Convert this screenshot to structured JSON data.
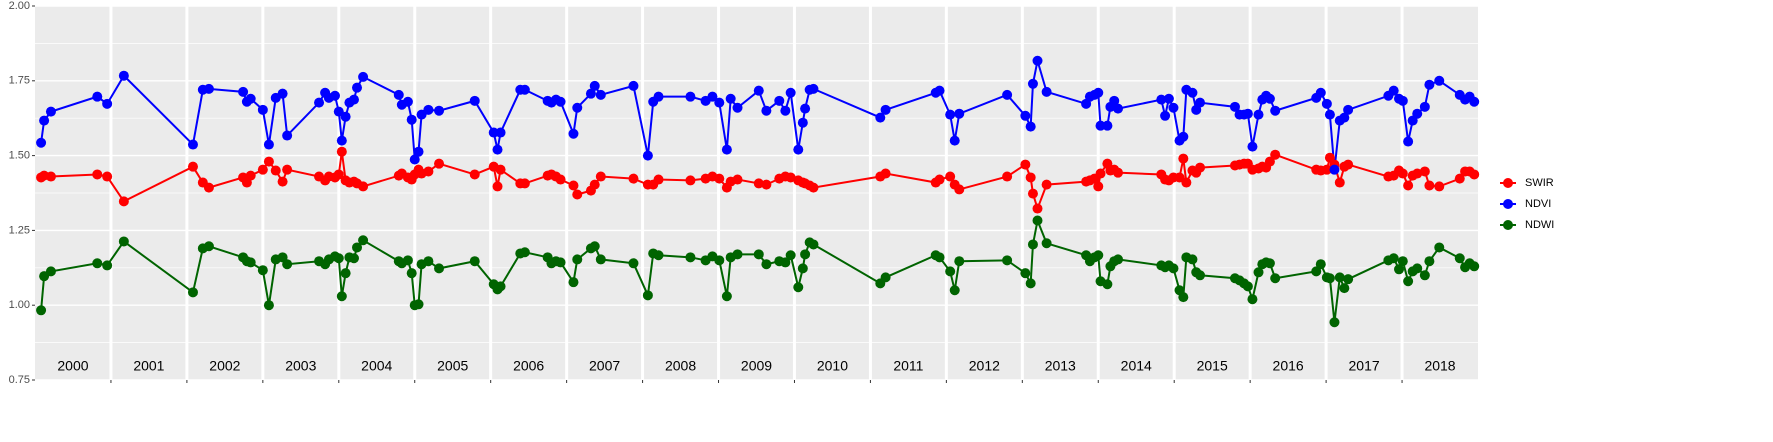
{
  "chart_data": {
    "type": "line",
    "x": [
      2000.08,
      2000.12,
      2000.21,
      2000.82,
      2000.95,
      2001.17,
      2002.08,
      2002.21,
      2002.29,
      2002.74,
      2002.79,
      2002.84,
      2003.0,
      2003.08,
      2003.17,
      2003.26,
      2003.32,
      2003.74,
      2003.82,
      2003.87,
      2003.95,
      2004.0,
      2004.04,
      2004.09,
      2004.14,
      2004.2,
      2004.24,
      2004.32,
      2004.79,
      2004.83,
      2004.91,
      2004.96,
      2005.0,
      2005.05,
      2005.09,
      2005.18,
      2005.32,
      2005.79,
      2006.04,
      2006.09,
      2006.13,
      2006.39,
      2006.45,
      2006.75,
      2006.8,
      2006.86,
      2006.92,
      2007.09,
      2007.14,
      2007.32,
      2007.37,
      2007.45,
      2007.88,
      2008.07,
      2008.14,
      2008.21,
      2008.63,
      2008.83,
      2008.92,
      2009.01,
      2009.11,
      2009.16,
      2009.25,
      2009.53,
      2009.63,
      2009.8,
      2009.88,
      2009.95,
      2010.05,
      2010.11,
      2010.14,
      2010.2,
      2010.25,
      2011.13,
      2011.2,
      2011.86,
      2011.91,
      2012.05,
      2012.11,
      2012.17,
      2012.8,
      2013.04,
      2013.11,
      2013.14,
      2013.2,
      2013.32,
      2013.84,
      2013.89,
      2013.95,
      2014.0,
      2014.03,
      2014.12,
      2014.16,
      2014.21,
      2014.26,
      2014.83,
      2014.88,
      2014.93,
      2014.99,
      2015.07,
      2015.12,
      2015.16,
      2015.24,
      2015.29,
      2015.34,
      2015.8,
      2015.86,
      2015.92,
      2015.97,
      2016.03,
      2016.11,
      2016.16,
      2016.21,
      2016.26,
      2016.33,
      2016.87,
      2016.93,
      2017.01,
      2017.05,
      2017.11,
      2017.18,
      2017.24,
      2017.29,
      2017.82,
      2017.89,
      2017.96,
      2018.01,
      2018.08,
      2018.14,
      2018.2,
      2018.3,
      2018.36,
      2018.49,
      2018.76,
      2018.83,
      2018.89,
      2018.95
    ],
    "series": [
      {
        "name": "SWIR",
        "color": "#ff0000",
        "values": [
          1.427,
          1.433,
          1.43,
          1.437,
          1.43,
          1.347,
          1.463,
          1.41,
          1.393,
          1.427,
          1.41,
          1.433,
          1.453,
          1.48,
          1.45,
          1.413,
          1.453,
          1.43,
          1.417,
          1.43,
          1.427,
          1.437,
          1.513,
          1.417,
          1.41,
          1.413,
          1.407,
          1.397,
          1.433,
          1.44,
          1.427,
          1.42,
          1.437,
          1.453,
          1.44,
          1.447,
          1.473,
          1.437,
          1.463,
          1.397,
          1.453,
          1.407,
          1.407,
          1.433,
          1.437,
          1.43,
          1.42,
          1.4,
          1.37,
          1.383,
          1.403,
          1.43,
          1.423,
          1.403,
          1.403,
          1.42,
          1.417,
          1.423,
          1.43,
          1.423,
          1.393,
          1.413,
          1.42,
          1.407,
          1.403,
          1.423,
          1.43,
          1.427,
          1.417,
          1.41,
          1.407,
          1.4,
          1.393,
          1.43,
          1.44,
          1.41,
          1.42,
          1.43,
          1.403,
          1.387,
          1.43,
          1.47,
          1.427,
          1.373,
          1.323,
          1.403,
          1.413,
          1.417,
          1.423,
          1.397,
          1.44,
          1.473,
          1.45,
          1.453,
          1.443,
          1.437,
          1.42,
          1.417,
          1.427,
          1.427,
          1.49,
          1.41,
          1.45,
          1.443,
          1.46,
          1.467,
          1.47,
          1.473,
          1.473,
          1.453,
          1.457,
          1.463,
          1.46,
          1.48,
          1.503,
          1.453,
          1.45,
          1.453,
          1.493,
          1.47,
          1.41,
          1.463,
          1.47,
          1.43,
          1.433,
          1.45,
          1.44,
          1.4,
          1.433,
          1.44,
          1.447,
          1.4,
          1.397,
          1.423,
          1.447,
          1.447,
          1.437
        ]
      },
      {
        "name": "NDVI",
        "color": "#0000ff",
        "values": [
          1.543,
          1.617,
          1.647,
          1.697,
          1.673,
          1.767,
          1.537,
          1.72,
          1.723,
          1.713,
          1.68,
          1.69,
          1.653,
          1.537,
          1.693,
          1.707,
          1.567,
          1.677,
          1.71,
          1.693,
          1.7,
          1.647,
          1.55,
          1.63,
          1.677,
          1.687,
          1.727,
          1.763,
          1.703,
          1.67,
          1.68,
          1.62,
          1.487,
          1.513,
          1.637,
          1.653,
          1.65,
          1.683,
          1.577,
          1.52,
          1.577,
          1.72,
          1.72,
          1.683,
          1.677,
          1.687,
          1.68,
          1.573,
          1.66,
          1.707,
          1.733,
          1.703,
          1.733,
          1.5,
          1.68,
          1.697,
          1.697,
          1.683,
          1.697,
          1.677,
          1.52,
          1.69,
          1.66,
          1.717,
          1.65,
          1.683,
          1.65,
          1.71,
          1.52,
          1.61,
          1.657,
          1.72,
          1.723,
          1.627,
          1.653,
          1.71,
          1.717,
          1.637,
          1.55,
          1.64,
          1.703,
          1.633,
          1.597,
          1.74,
          1.817,
          1.713,
          1.673,
          1.697,
          1.703,
          1.71,
          1.6,
          1.6,
          1.663,
          1.683,
          1.657,
          1.687,
          1.633,
          1.69,
          1.66,
          1.55,
          1.563,
          1.72,
          1.71,
          1.653,
          1.677,
          1.663,
          1.637,
          1.637,
          1.64,
          1.53,
          1.637,
          1.687,
          1.7,
          1.69,
          1.65,
          1.693,
          1.71,
          1.673,
          1.637,
          1.453,
          1.617,
          1.627,
          1.653,
          1.7,
          1.717,
          1.69,
          1.683,
          1.547,
          1.617,
          1.64,
          1.663,
          1.737,
          1.75,
          1.703,
          1.687,
          1.697,
          1.68
        ]
      },
      {
        "name": "NDWI",
        "color": "#006400",
        "values": [
          0.983,
          1.097,
          1.113,
          1.14,
          1.133,
          1.213,
          1.043,
          1.19,
          1.197,
          1.16,
          1.147,
          1.143,
          1.117,
          1.0,
          1.153,
          1.16,
          1.137,
          1.147,
          1.137,
          1.153,
          1.163,
          1.157,
          1.03,
          1.107,
          1.16,
          1.157,
          1.193,
          1.217,
          1.147,
          1.14,
          1.15,
          1.107,
          1.0,
          1.003,
          1.137,
          1.147,
          1.123,
          1.147,
          1.07,
          1.053,
          1.063,
          1.173,
          1.177,
          1.16,
          1.14,
          1.147,
          1.143,
          1.077,
          1.153,
          1.19,
          1.197,
          1.153,
          1.14,
          1.033,
          1.173,
          1.167,
          1.16,
          1.15,
          1.163,
          1.15,
          1.03,
          1.16,
          1.17,
          1.17,
          1.137,
          1.147,
          1.143,
          1.167,
          1.06,
          1.123,
          1.17,
          1.21,
          1.203,
          1.073,
          1.093,
          1.167,
          1.16,
          1.113,
          1.05,
          1.147,
          1.15,
          1.107,
          1.073,
          1.203,
          1.283,
          1.207,
          1.167,
          1.147,
          1.16,
          1.167,
          1.08,
          1.07,
          1.13,
          1.147,
          1.153,
          1.133,
          1.127,
          1.133,
          1.123,
          1.05,
          1.027,
          1.16,
          1.153,
          1.11,
          1.1,
          1.09,
          1.083,
          1.073,
          1.063,
          1.02,
          1.11,
          1.137,
          1.143,
          1.14,
          1.09,
          1.113,
          1.137,
          1.093,
          1.09,
          0.943,
          1.093,
          1.057,
          1.087,
          1.15,
          1.157,
          1.12,
          1.147,
          1.08,
          1.113,
          1.123,
          1.1,
          1.147,
          1.193,
          1.157,
          1.127,
          1.14,
          1.13
        ]
      }
    ],
    "xlim": [
      2000,
      2019
    ],
    "xticks": [
      2001,
      2002,
      2003,
      2004,
      2005,
      2006,
      2007,
      2008,
      2009,
      2010,
      2011,
      2012,
      2013,
      2014,
      2015,
      2016,
      2017,
      2018
    ],
    "year_labels": [
      2000,
      2001,
      2002,
      2003,
      2004,
      2005,
      2006,
      2007,
      2008,
      2009,
      2010,
      2011,
      2012,
      2013,
      2014,
      2015,
      2016,
      2017,
      2018
    ],
    "ylim": [
      0.75,
      2.0
    ],
    "yticks": [
      0.75,
      {
        "value": 1.0,
        "label": "1.00"
      },
      1.25,
      {
        "value": 1.5,
        "label": "1.50"
      },
      1.75,
      {
        "value": 2.0,
        "label": "2.00"
      }
    ],
    "yminor": [
      0.875,
      1.125,
      1.375,
      1.625,
      1.875
    ],
    "grid": true,
    "legend": "right"
  }
}
